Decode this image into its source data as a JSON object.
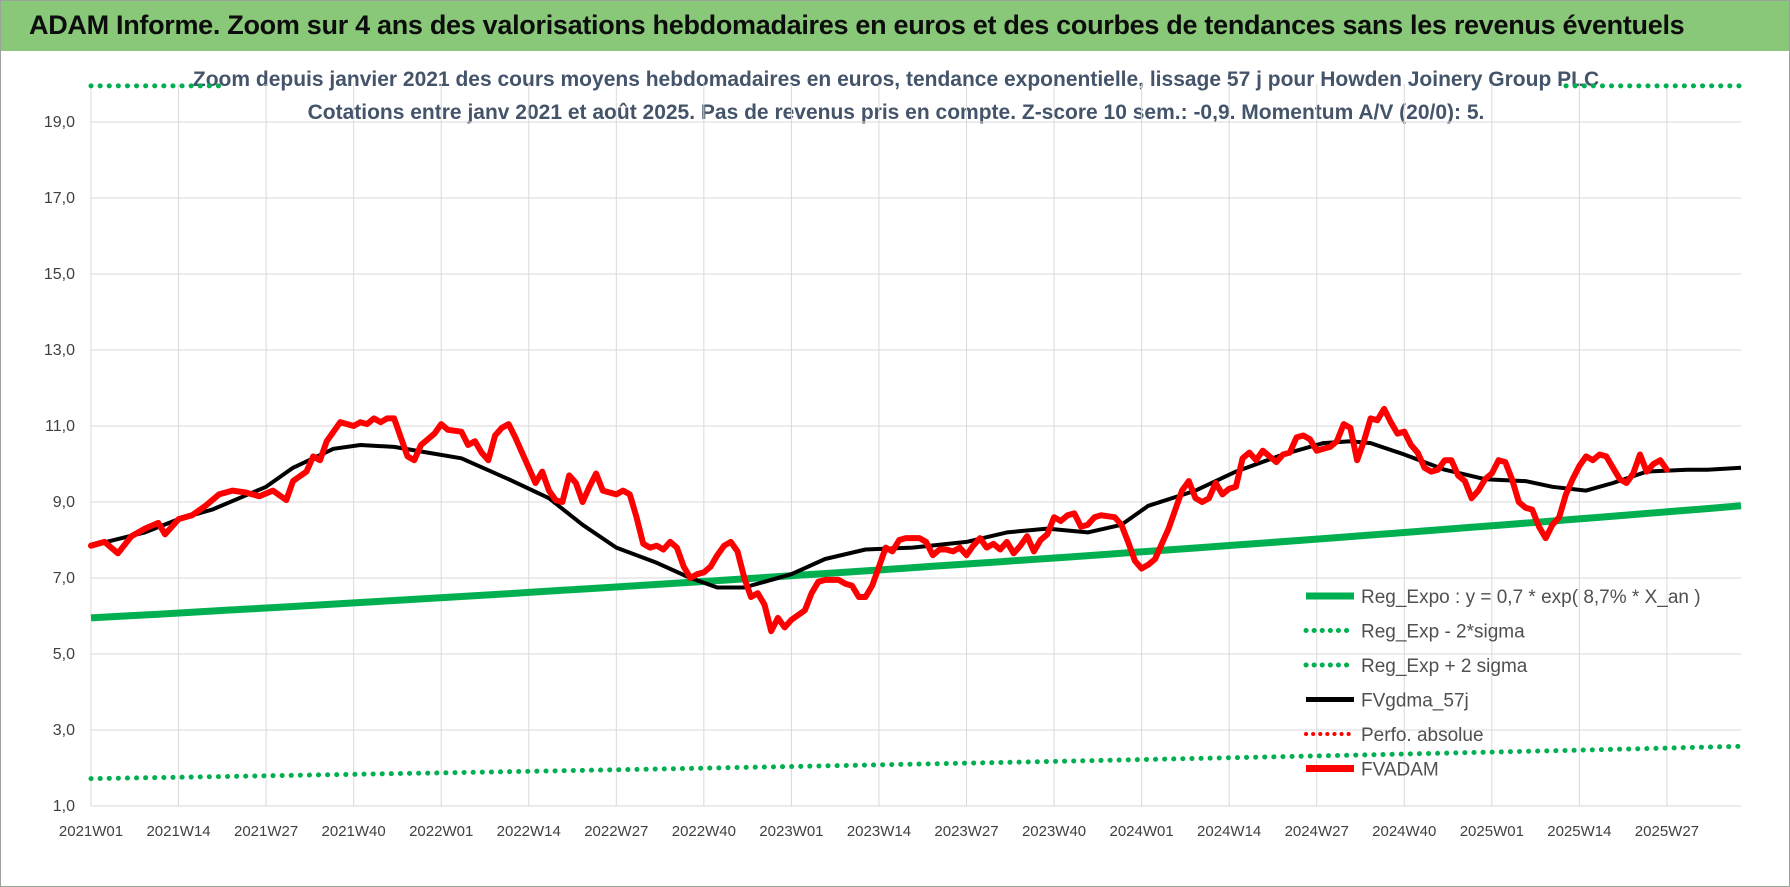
{
  "header": {
    "title": "ADAM Informe. Zoom sur 4 ans des valorisations hebdomadaires en euros et des courbes de tendances sans les revenus éventuels"
  },
  "colors": {
    "banner": "#88c878",
    "reg_expo": "#00b050",
    "fv_adam": "#ff0000",
    "fv_gdma": "#000000",
    "title_text": "#44546a"
  },
  "chart_data": {
    "type": "line",
    "title": "Zoom depuis janvier 2021 des cours moyens hebdomadaires en euros, tendance exponentielle, lissage 57 j pour Howden Joinery Group PLC",
    "subtitle": "Cotations entre janv 2021 et août 2025.  Pas de revenus pris en compte. Z-score 10 sem.: -0,9. Momentum A/V (20/0): 5.",
    "ylim": [
      1,
      20
    ],
    "y_ticks": [
      "1,0",
      "3,0",
      "5,0",
      "7,0",
      "9,0",
      "11,0",
      "13,0",
      "15,0",
      "17,0",
      "19,0"
    ],
    "x_ticks": [
      "2021W01",
      "2021W14",
      "2021W27",
      "2021W40",
      "2022W01",
      "2022W14",
      "2022W27",
      "2022W40",
      "2023W01",
      "2023W14",
      "2023W27",
      "2023W40",
      "2024W01",
      "2024W14",
      "2024W27",
      "2024W40",
      "2025W01",
      "2025W14",
      "2025W27"
    ],
    "week_count": 246,
    "grid": true,
    "legend_position": "bottom-right",
    "series": [
      {
        "name": "Reg_Expo : y = 0,7 * exp( 8,7% *  X_an )",
        "style": "solid-thick",
        "start": 5.95,
        "end": 8.9
      },
      {
        "name": "Reg_Exp - 2*sigma",
        "style": "dotted",
        "start": 1.72,
        "end": 2.57
      },
      {
        "name": "Reg_Exp + 2 sigma",
        "style": "dotted",
        "start": 19.95,
        "end": 19.95
      },
      {
        "name": "FVgdma_57j",
        "style": "solid",
        "points": [
          [
            0,
            7.85
          ],
          [
            8,
            8.2
          ],
          [
            13,
            8.55
          ],
          [
            18,
            8.8
          ],
          [
            26,
            9.4
          ],
          [
            30,
            9.9
          ],
          [
            36,
            10.4
          ],
          [
            40,
            10.5
          ],
          [
            45,
            10.45
          ],
          [
            50,
            10.3
          ],
          [
            55,
            10.15
          ],
          [
            62,
            9.6
          ],
          [
            68,
            9.1
          ],
          [
            73,
            8.4
          ],
          [
            78,
            7.8
          ],
          [
            84,
            7.4
          ],
          [
            89,
            7.0
          ],
          [
            93,
            6.75
          ],
          [
            97,
            6.75
          ],
          [
            104,
            7.1
          ],
          [
            109,
            7.5
          ],
          [
            115,
            7.75
          ],
          [
            122,
            7.8
          ],
          [
            130,
            7.95
          ],
          [
            136,
            8.2
          ],
          [
            142,
            8.3
          ],
          [
            148,
            8.2
          ],
          [
            153,
            8.4
          ],
          [
            157,
            8.9
          ],
          [
            164,
            9.3
          ],
          [
            170,
            9.8
          ],
          [
            177,
            10.25
          ],
          [
            183,
            10.55
          ],
          [
            187,
            10.6
          ],
          [
            190,
            10.55
          ],
          [
            195,
            10.25
          ],
          [
            201,
            9.85
          ],
          [
            207,
            9.6
          ],
          [
            213,
            9.55
          ],
          [
            217,
            9.4
          ],
          [
            222,
            9.3
          ],
          [
            226,
            9.5
          ],
          [
            231,
            9.8
          ],
          [
            237,
            9.85
          ],
          [
            240,
            9.85
          ],
          [
            245,
            9.9
          ]
        ]
      },
      {
        "name": "Perfo. absolue",
        "style": "dotted",
        "points": []
      },
      {
        "name": "FVADAM",
        "style": "solid-thick",
        "points": [
          [
            0,
            7.85
          ],
          [
            2,
            7.95
          ],
          [
            4,
            7.65
          ],
          [
            6,
            8.1
          ],
          [
            8,
            8.3
          ],
          [
            10,
            8.45
          ],
          [
            11,
            8.15
          ],
          [
            13,
            8.55
          ],
          [
            15,
            8.65
          ],
          [
            17,
            8.9
          ],
          [
            19,
            9.2
          ],
          [
            21,
            9.3
          ],
          [
            23,
            9.25
          ],
          [
            25,
            9.15
          ],
          [
            27,
            9.3
          ],
          [
            29,
            9.05
          ],
          [
            30,
            9.55
          ],
          [
            32,
            9.8
          ],
          [
            33,
            10.2
          ],
          [
            34,
            10.1
          ],
          [
            35,
            10.6
          ],
          [
            37,
            11.1
          ],
          [
            39,
            11.0
          ],
          [
            40,
            11.1
          ],
          [
            41,
            11.05
          ],
          [
            42,
            11.2
          ],
          [
            43,
            11.1
          ],
          [
            44,
            11.2
          ],
          [
            45,
            11.2
          ],
          [
            46,
            10.7
          ],
          [
            47,
            10.2
          ],
          [
            48,
            10.1
          ],
          [
            49,
            10.5
          ],
          [
            51,
            10.8
          ],
          [
            52,
            11.05
          ],
          [
            53,
            10.9
          ],
          [
            55,
            10.85
          ],
          [
            56,
            10.5
          ],
          [
            57,
            10.6
          ],
          [
            58,
            10.3
          ],
          [
            59,
            10.1
          ],
          [
            60,
            10.75
          ],
          [
            61,
            10.95
          ],
          [
            62,
            11.05
          ],
          [
            63,
            10.7
          ],
          [
            64,
            10.3
          ],
          [
            65,
            9.9
          ],
          [
            66,
            9.5
          ],
          [
            67,
            9.8
          ],
          [
            68,
            9.3
          ],
          [
            69,
            9.05
          ],
          [
            70,
            9.0
          ],
          [
            71,
            9.7
          ],
          [
            72,
            9.5
          ],
          [
            73,
            9.0
          ],
          [
            74,
            9.4
          ],
          [
            75,
            9.75
          ],
          [
            76,
            9.3
          ],
          [
            77,
            9.25
          ],
          [
            78,
            9.2
          ],
          [
            79,
            9.3
          ],
          [
            80,
            9.2
          ],
          [
            81,
            8.6
          ],
          [
            82,
            7.9
          ],
          [
            83,
            7.8
          ],
          [
            84,
            7.85
          ],
          [
            85,
            7.75
          ],
          [
            86,
            7.95
          ],
          [
            87,
            7.8
          ],
          [
            88,
            7.3
          ],
          [
            89,
            7.0
          ],
          [
            90,
            7.1
          ],
          [
            91,
            7.15
          ],
          [
            92,
            7.3
          ],
          [
            93,
            7.6
          ],
          [
            94,
            7.85
          ],
          [
            95,
            7.95
          ],
          [
            96,
            7.7
          ],
          [
            97,
            7.0
          ],
          [
            98,
            6.5
          ],
          [
            99,
            6.6
          ],
          [
            100,
            6.3
          ],
          [
            101,
            5.6
          ],
          [
            102,
            5.95
          ],
          [
            103,
            5.7
          ],
          [
            104,
            5.9
          ],
          [
            106,
            6.15
          ],
          [
            107,
            6.6
          ],
          [
            108,
            6.9
          ],
          [
            109,
            6.95
          ],
          [
            111,
            6.95
          ],
          [
            112,
            6.85
          ],
          [
            113,
            6.8
          ],
          [
            114,
            6.5
          ],
          [
            115,
            6.5
          ],
          [
            116,
            6.8
          ],
          [
            117,
            7.3
          ],
          [
            118,
            7.8
          ],
          [
            119,
            7.7
          ],
          [
            120,
            8.0
          ],
          [
            121,
            8.05
          ],
          [
            123,
            8.05
          ],
          [
            124,
            7.95
          ],
          [
            125,
            7.6
          ],
          [
            126,
            7.75
          ],
          [
            127,
            7.75
          ],
          [
            128,
            7.7
          ],
          [
            129,
            7.8
          ],
          [
            130,
            7.6
          ],
          [
            131,
            7.85
          ],
          [
            132,
            8.05
          ],
          [
            133,
            7.8
          ],
          [
            134,
            7.9
          ],
          [
            135,
            7.75
          ],
          [
            136,
            7.95
          ],
          [
            137,
            7.65
          ],
          [
            138,
            7.85
          ],
          [
            139,
            8.1
          ],
          [
            140,
            7.7
          ],
          [
            141,
            8.0
          ],
          [
            142,
            8.15
          ],
          [
            143,
            8.6
          ],
          [
            144,
            8.5
          ],
          [
            145,
            8.65
          ],
          [
            146,
            8.7
          ],
          [
            147,
            8.35
          ],
          [
            148,
            8.4
          ],
          [
            149,
            8.6
          ],
          [
            150,
            8.65
          ],
          [
            152,
            8.6
          ],
          [
            153,
            8.4
          ],
          [
            154,
            7.95
          ],
          [
            155,
            7.45
          ],
          [
            156,
            7.25
          ],
          [
            157,
            7.35
          ],
          [
            158,
            7.5
          ],
          [
            159,
            7.9
          ],
          [
            160,
            8.3
          ],
          [
            161,
            8.8
          ],
          [
            162,
            9.3
          ],
          [
            163,
            9.55
          ],
          [
            164,
            9.1
          ],
          [
            165,
            9.0
          ],
          [
            166,
            9.1
          ],
          [
            167,
            9.5
          ],
          [
            168,
            9.2
          ],
          [
            169,
            9.35
          ],
          [
            170,
            9.4
          ],
          [
            171,
            10.15
          ],
          [
            172,
            10.3
          ],
          [
            173,
            10.1
          ],
          [
            174,
            10.35
          ],
          [
            175,
            10.2
          ],
          [
            176,
            10.05
          ],
          [
            177,
            10.25
          ],
          [
            178,
            10.3
          ],
          [
            179,
            10.7
          ],
          [
            180,
            10.75
          ],
          [
            181,
            10.65
          ],
          [
            182,
            10.35
          ],
          [
            183,
            10.4
          ],
          [
            184,
            10.45
          ],
          [
            185,
            10.6
          ],
          [
            186,
            11.05
          ],
          [
            187,
            10.95
          ],
          [
            188,
            10.1
          ],
          [
            189,
            10.6
          ],
          [
            190,
            11.2
          ],
          [
            191,
            11.15
          ],
          [
            192,
            11.45
          ],
          [
            193,
            11.1
          ],
          [
            194,
            10.8
          ],
          [
            195,
            10.85
          ],
          [
            196,
            10.5
          ],
          [
            197,
            10.3
          ],
          [
            198,
            9.9
          ],
          [
            199,
            9.8
          ],
          [
            200,
            9.85
          ],
          [
            201,
            10.1
          ],
          [
            202,
            10.1
          ],
          [
            203,
            9.7
          ],
          [
            204,
            9.55
          ],
          [
            205,
            9.1
          ],
          [
            206,
            9.3
          ],
          [
            207,
            9.6
          ],
          [
            208,
            9.75
          ],
          [
            209,
            10.1
          ],
          [
            210,
            10.05
          ],
          [
            211,
            9.6
          ],
          [
            212,
            9.0
          ],
          [
            213,
            8.85
          ],
          [
            214,
            8.8
          ],
          [
            215,
            8.35
          ],
          [
            216,
            8.05
          ],
          [
            217,
            8.4
          ],
          [
            218,
            8.6
          ],
          [
            219,
            9.2
          ],
          [
            220,
            9.6
          ],
          [
            221,
            9.95
          ],
          [
            222,
            10.2
          ],
          [
            223,
            10.1
          ],
          [
            224,
            10.25
          ],
          [
            225,
            10.2
          ],
          [
            226,
            9.9
          ],
          [
            227,
            9.6
          ],
          [
            228,
            9.5
          ],
          [
            229,
            9.75
          ],
          [
            230,
            10.25
          ],
          [
            231,
            9.8
          ],
          [
            232,
            10.0
          ],
          [
            233,
            10.1
          ],
          [
            234,
            9.85
          ]
        ]
      }
    ]
  }
}
